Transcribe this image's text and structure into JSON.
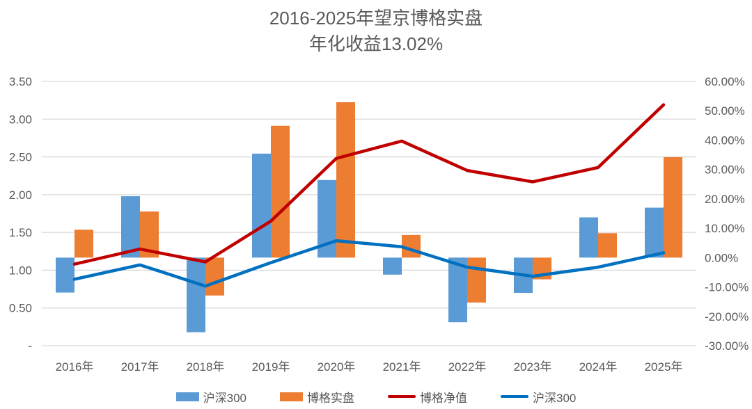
{
  "chart_data": {
    "type": "combo-bar-line",
    "title_line1": "2016-2025年望京博格实盘",
    "title_line2": "年化收益13.02%",
    "title": "2016-2025年望京博格实盘 年化收益13.02%",
    "categories": [
      "2016年",
      "2017年",
      "2018年",
      "2019年",
      "2020年",
      "2021年",
      "2022年",
      "2023年",
      "2024年",
      "2025年"
    ],
    "bar_series": [
      {
        "name": "沪深300",
        "axis": "right",
        "unit": "percent",
        "color": "#5B9BD5",
        "values": [
          -11.9,
          20.9,
          -25.4,
          35.4,
          26.4,
          -5.8,
          -22.0,
          -12.0,
          13.7,
          17.0
        ]
      },
      {
        "name": "博格实盘",
        "axis": "right",
        "unit": "percent",
        "color": "#ED7D31",
        "values": [
          9.5,
          15.7,
          -12.9,
          44.9,
          52.9,
          7.7,
          -15.3,
          -7.4,
          8.3,
          34.2
        ]
      }
    ],
    "line_series": [
      {
        "name": "博格净值",
        "axis": "left",
        "unit": "net-value",
        "color": "#C00000",
        "values": [
          1.08,
          1.28,
          1.11,
          1.65,
          2.48,
          2.71,
          2.32,
          2.17,
          2.36,
          3.19
        ]
      },
      {
        "name": "沪深300",
        "axis": "left",
        "unit": "net-value",
        "color": "#0070C0",
        "values": [
          0.88,
          1.07,
          0.79,
          1.1,
          1.39,
          1.31,
          1.04,
          0.92,
          1.04,
          1.23
        ]
      }
    ],
    "left_axis": {
      "min": 0,
      "max": 3.5,
      "ticks": [
        "3.50",
        "3.00",
        "2.50",
        "2.00",
        "1.50",
        "1.00",
        "0.50",
        "-"
      ]
    },
    "right_axis": {
      "min": -30,
      "max": 60,
      "ticks": [
        "60.00%",
        "50.00%",
        "40.00%",
        "30.00%",
        "20.00%",
        "10.00%",
        "0.00%",
        "-10.00%",
        "-20.00%",
        "-30.00%"
      ]
    },
    "legend": [
      {
        "label": "沪深300",
        "marker": "bar",
        "color": "#5B9BD5"
      },
      {
        "label": "博格实盘",
        "marker": "bar",
        "color": "#ED7D31"
      },
      {
        "label": "博格净值",
        "marker": "line",
        "color": "#C00000"
      },
      {
        "label": "沪深300",
        "marker": "line",
        "color": "#0070C0"
      }
    ],
    "grid": true,
    "legend_position": "bottom",
    "colors": {
      "gridline": "#D9D9D9",
      "axis_text": "#595959",
      "title_text": "#595959",
      "background": "#FFFFFF"
    }
  }
}
